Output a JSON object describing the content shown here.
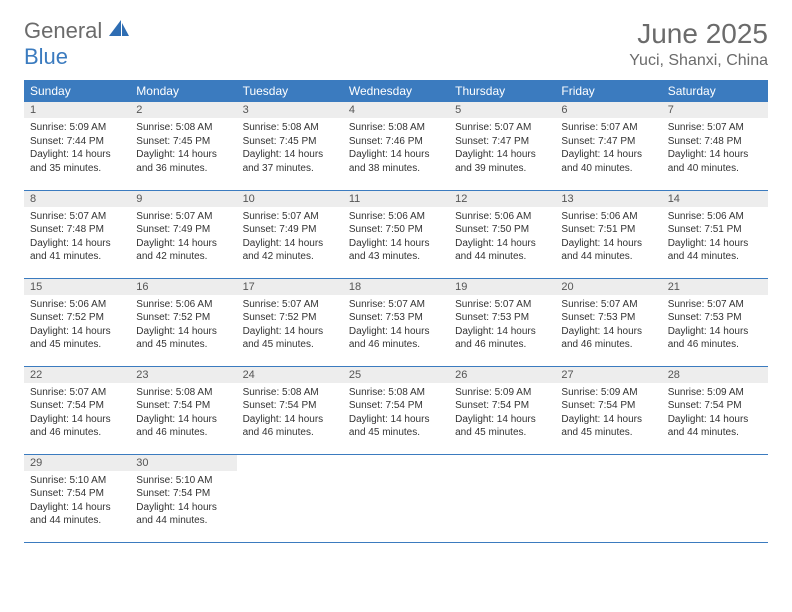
{
  "logo": {
    "word1": "General",
    "word2": "Blue"
  },
  "title": "June 2025",
  "location": "Yuci, Shanxi, China",
  "colors": {
    "header_bg": "#3b7bbf",
    "header_text": "#ffffff",
    "daynum_bg": "#ededed",
    "border": "#3b7bbf",
    "title_color": "#6b6b6b"
  },
  "day_names": [
    "Sunday",
    "Monday",
    "Tuesday",
    "Wednesday",
    "Thursday",
    "Friday",
    "Saturday"
  ],
  "weeks": [
    [
      {
        "n": "1",
        "sr": "5:09 AM",
        "ss": "7:44 PM",
        "dl": "14 hours and 35 minutes."
      },
      {
        "n": "2",
        "sr": "5:08 AM",
        "ss": "7:45 PM",
        "dl": "14 hours and 36 minutes."
      },
      {
        "n": "3",
        "sr": "5:08 AM",
        "ss": "7:45 PM",
        "dl": "14 hours and 37 minutes."
      },
      {
        "n": "4",
        "sr": "5:08 AM",
        "ss": "7:46 PM",
        "dl": "14 hours and 38 minutes."
      },
      {
        "n": "5",
        "sr": "5:07 AM",
        "ss": "7:47 PM",
        "dl": "14 hours and 39 minutes."
      },
      {
        "n": "6",
        "sr": "5:07 AM",
        "ss": "7:47 PM",
        "dl": "14 hours and 40 minutes."
      },
      {
        "n": "7",
        "sr": "5:07 AM",
        "ss": "7:48 PM",
        "dl": "14 hours and 40 minutes."
      }
    ],
    [
      {
        "n": "8",
        "sr": "5:07 AM",
        "ss": "7:48 PM",
        "dl": "14 hours and 41 minutes."
      },
      {
        "n": "9",
        "sr": "5:07 AM",
        "ss": "7:49 PM",
        "dl": "14 hours and 42 minutes."
      },
      {
        "n": "10",
        "sr": "5:07 AM",
        "ss": "7:49 PM",
        "dl": "14 hours and 42 minutes."
      },
      {
        "n": "11",
        "sr": "5:06 AM",
        "ss": "7:50 PM",
        "dl": "14 hours and 43 minutes."
      },
      {
        "n": "12",
        "sr": "5:06 AM",
        "ss": "7:50 PM",
        "dl": "14 hours and 44 minutes."
      },
      {
        "n": "13",
        "sr": "5:06 AM",
        "ss": "7:51 PM",
        "dl": "14 hours and 44 minutes."
      },
      {
        "n": "14",
        "sr": "5:06 AM",
        "ss": "7:51 PM",
        "dl": "14 hours and 44 minutes."
      }
    ],
    [
      {
        "n": "15",
        "sr": "5:06 AM",
        "ss": "7:52 PM",
        "dl": "14 hours and 45 minutes."
      },
      {
        "n": "16",
        "sr": "5:06 AM",
        "ss": "7:52 PM",
        "dl": "14 hours and 45 minutes."
      },
      {
        "n": "17",
        "sr": "5:07 AM",
        "ss": "7:52 PM",
        "dl": "14 hours and 45 minutes."
      },
      {
        "n": "18",
        "sr": "5:07 AM",
        "ss": "7:53 PM",
        "dl": "14 hours and 46 minutes."
      },
      {
        "n": "19",
        "sr": "5:07 AM",
        "ss": "7:53 PM",
        "dl": "14 hours and 46 minutes."
      },
      {
        "n": "20",
        "sr": "5:07 AM",
        "ss": "7:53 PM",
        "dl": "14 hours and 46 minutes."
      },
      {
        "n": "21",
        "sr": "5:07 AM",
        "ss": "7:53 PM",
        "dl": "14 hours and 46 minutes."
      }
    ],
    [
      {
        "n": "22",
        "sr": "5:07 AM",
        "ss": "7:54 PM",
        "dl": "14 hours and 46 minutes."
      },
      {
        "n": "23",
        "sr": "5:08 AM",
        "ss": "7:54 PM",
        "dl": "14 hours and 46 minutes."
      },
      {
        "n": "24",
        "sr": "5:08 AM",
        "ss": "7:54 PM",
        "dl": "14 hours and 46 minutes."
      },
      {
        "n": "25",
        "sr": "5:08 AM",
        "ss": "7:54 PM",
        "dl": "14 hours and 45 minutes."
      },
      {
        "n": "26",
        "sr": "5:09 AM",
        "ss": "7:54 PM",
        "dl": "14 hours and 45 minutes."
      },
      {
        "n": "27",
        "sr": "5:09 AM",
        "ss": "7:54 PM",
        "dl": "14 hours and 45 minutes."
      },
      {
        "n": "28",
        "sr": "5:09 AM",
        "ss": "7:54 PM",
        "dl": "14 hours and 44 minutes."
      }
    ],
    [
      {
        "n": "29",
        "sr": "5:10 AM",
        "ss": "7:54 PM",
        "dl": "14 hours and 44 minutes."
      },
      {
        "n": "30",
        "sr": "5:10 AM",
        "ss": "7:54 PM",
        "dl": "14 hours and 44 minutes."
      },
      null,
      null,
      null,
      null,
      null
    ]
  ],
  "labels": {
    "sunrise": "Sunrise:",
    "sunset": "Sunset:",
    "daylight": "Daylight:"
  }
}
